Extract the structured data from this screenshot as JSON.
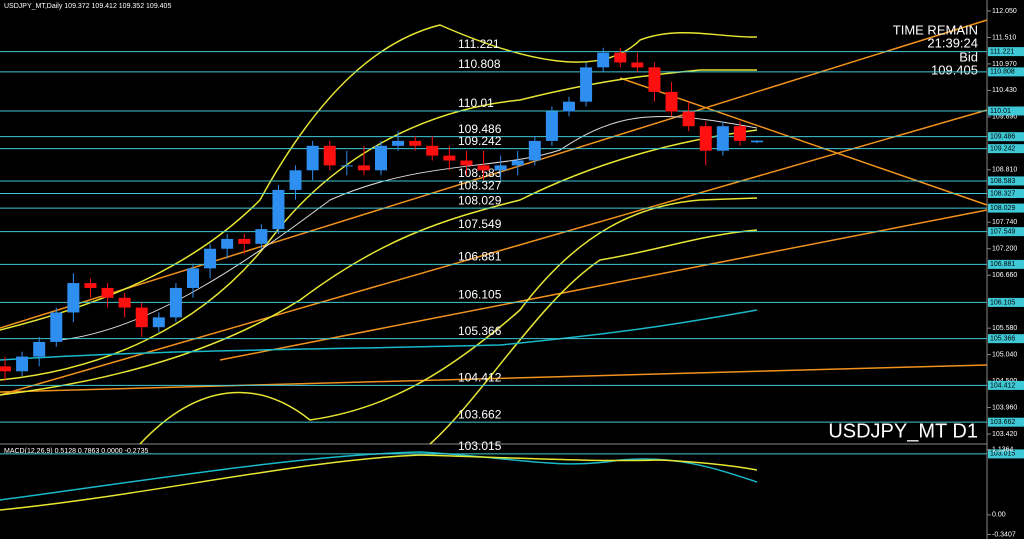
{
  "chart_data": {
    "type": "candlestick",
    "title": "USDJPY_MT,Daily 109.372 109.412 109.352 109.405",
    "symbol_label": "USDJPY_MT D1",
    "countdown": {
      "label": "TIME REMAIN",
      "time": "21:39:24",
      "bid_label": "Bid",
      "bid": 109.405
    },
    "ylim": [
      103.217,
      112.274
    ],
    "yticks": [
      {
        "value": 112.05,
        "label": "112.050"
      },
      {
        "value": 111.51,
        "label": "111.510"
      },
      {
        "value": 110.97,
        "label": "110.970"
      },
      {
        "value": 110.43,
        "label": "110.430"
      },
      {
        "value": 109.89,
        "label": "109.890"
      },
      {
        "value": 108.81,
        "label": "108.810"
      },
      {
        "value": 107.74,
        "label": "107.740"
      },
      {
        "value": 107.2,
        "label": "107.200"
      },
      {
        "value": 106.66,
        "label": "106.660"
      },
      {
        "value": 105.58,
        "label": "105.580"
      },
      {
        "value": 105.04,
        "label": "105.040"
      },
      {
        "value": 104.5,
        "label": "104.500"
      },
      {
        "value": 103.96,
        "label": "103.960"
      },
      {
        "value": 103.42,
        "label": "103.420"
      }
    ],
    "levels": [
      111.221,
      110.808,
      110.01,
      109.486,
      109.242,
      108.583,
      108.327,
      108.029,
      107.549,
      106.881,
      106.105,
      105.366,
      104.412,
      103.662,
      103.015
    ],
    "up_color": "#2f8ff0",
    "down_color": "#ff1010",
    "level_color": "#3fc9d6",
    "open": [
      104.8,
      104.7,
      105.0,
      105.3,
      105.9,
      106.5,
      106.4,
      106.2,
      106.0,
      105.6,
      105.8,
      106.4,
      106.8,
      107.2,
      107.4,
      107.3,
      107.6,
      108.4,
      108.8,
      109.3,
      108.9,
      108.9,
      108.8,
      109.3,
      109.4,
      109.3,
      109.1,
      109.0,
      108.9,
      108.8,
      108.9,
      109.0,
      109.4,
      110.0,
      110.2,
      110.9,
      111.2,
      111.0,
      110.9,
      110.4,
      110.0,
      109.7,
      109.2,
      109.7,
      109.372
    ],
    "high": [
      105.0,
      105.1,
      105.4,
      106.0,
      106.7,
      106.6,
      106.5,
      106.3,
      106.1,
      105.9,
      106.5,
      106.9,
      107.3,
      107.5,
      107.5,
      107.7,
      108.5,
      108.9,
      109.4,
      109.4,
      109.2,
      109.3,
      109.4,
      109.6,
      109.5,
      109.5,
      109.3,
      109.2,
      109.2,
      109.1,
      109.2,
      109.5,
      110.1,
      110.3,
      111.0,
      111.3,
      111.3,
      111.2,
      111.0,
      110.6,
      110.2,
      109.8,
      109.8,
      109.8,
      109.412
    ],
    "low": [
      104.5,
      104.6,
      104.8,
      105.2,
      105.7,
      106.2,
      106.0,
      105.8,
      105.4,
      105.5,
      105.7,
      106.2,
      106.6,
      107.0,
      107.1,
      107.2,
      107.5,
      108.2,
      108.6,
      108.8,
      108.7,
      108.7,
      108.7,
      109.2,
      109.2,
      109.0,
      108.8,
      108.7,
      108.6,
      108.6,
      108.7,
      108.9,
      109.3,
      109.9,
      110.1,
      110.8,
      110.9,
      110.8,
      110.2,
      109.9,
      109.6,
      108.9,
      109.1,
      109.3,
      109.352
    ],
    "close": [
      104.7,
      105.0,
      105.3,
      105.9,
      106.5,
      106.4,
      106.2,
      106.0,
      105.6,
      105.8,
      106.4,
      106.8,
      107.2,
      107.4,
      107.3,
      107.6,
      108.4,
      108.8,
      109.3,
      108.9,
      108.9,
      108.8,
      109.3,
      109.4,
      109.3,
      109.1,
      109.0,
      108.9,
      108.8,
      108.9,
      109.0,
      109.4,
      110.0,
      110.2,
      110.9,
      111.2,
      111.0,
      110.9,
      110.4,
      110.0,
      109.7,
      109.2,
      109.7,
      109.4,
      109.405
    ],
    "macd": {
      "title": "MACD(12,26,9) 0.5128 0.7863 0.0000 -0.2735",
      "ylim": [
        -0.42,
        1.2
      ],
      "yticks": [
        1.1364,
        {
          "value": 0,
          "label": "0.00"
        },
        -0.3407
      ]
    }
  }
}
